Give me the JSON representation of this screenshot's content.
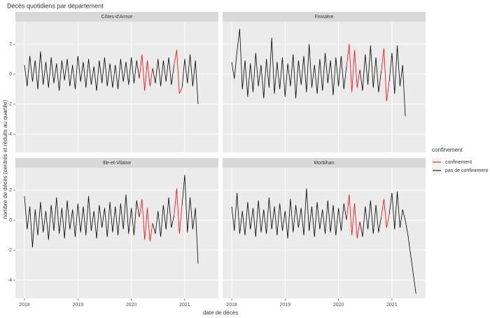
{
  "chart_data": {
    "type": "line",
    "title": "Décès quotidiens par département",
    "x_label": "date de décès",
    "y_label": "nombre de décès (centrés et réduits au quartile)",
    "legend_title": "confinement",
    "xlim": [
      2017.83,
      2021.63
    ],
    "ylim": [
      -5.21,
      3.49
    ],
    "xticks": [
      2018,
      2019,
      2020,
      2021
    ],
    "yticks": [
      -4,
      -2,
      0,
      2
    ],
    "grid": true,
    "x": [
      2018,
      2018.05,
      2018.1,
      2018.15,
      2018.2,
      2018.25,
      2018.3,
      2018.35,
      2018.4,
      2018.45,
      2018.5,
      2018.55,
      2018.6,
      2018.65,
      2018.7,
      2018.75,
      2018.8,
      2018.85,
      2018.9,
      2018.95,
      2019,
      2019.05,
      2019.1,
      2019.15,
      2019.2,
      2019.25,
      2019.3,
      2019.35,
      2019.4,
      2019.45,
      2019.5,
      2019.55,
      2019.6,
      2019.65,
      2019.7,
      2019.75,
      2019.8,
      2019.85,
      2019.9,
      2019.95,
      2020,
      2020.05,
      2020.1,
      2020.15,
      2020.2,
      2020.25,
      2020.3,
      2020.35,
      2020.4,
      2020.45,
      2020.5,
      2020.55,
      2020.6,
      2020.65,
      2020.7,
      2020.75,
      2020.8,
      2020.85,
      2020.9,
      2020.95,
      2021,
      2021.05,
      2021.1,
      2021.15,
      2021.2,
      2021.25,
      2021.3,
      2021.35,
      2021.4,
      2021.45
    ],
    "panels": [
      {
        "title": "Côtes-d'Armor",
        "series": [
          {
            "name": "confinement",
            "color": "#ff0000",
            "values": [
              null,
              null,
              null,
              null,
              null,
              null,
              null,
              null,
              null,
              null,
              null,
              null,
              null,
              null,
              null,
              null,
              null,
              null,
              null,
              null,
              null,
              null,
              null,
              null,
              null,
              null,
              null,
              null,
              null,
              null,
              null,
              null,
              null,
              null,
              null,
              null,
              null,
              null,
              null,
              null,
              null,
              null,
              null,
              -0.3,
              1.3,
              -1.1,
              0.9,
              -0.8,
              0.4,
              null,
              null,
              null,
              null,
              null,
              null,
              null,
              0.6,
              1.6,
              -1.3,
              -0.9,
              null,
              null,
              null,
              null,
              null,
              null,
              null,
              null,
              null,
              null
            ]
          },
          {
            "name": "pas de confinement",
            "color": "#000000",
            "values": [
              0.6,
              -0.8,
              1.2,
              -0.5,
              0.9,
              -1.0,
              1.5,
              -0.7,
              0.8,
              -0.9,
              1.1,
              -0.6,
              0.7,
              -1.1,
              0.9,
              -0.4,
              1.0,
              -0.8,
              0.6,
              -1.0,
              1.2,
              -0.5,
              0.8,
              -0.9,
              1.0,
              -0.7,
              0.5,
              -1.1,
              0.9,
              -0.6,
              1.1,
              -0.8,
              0.7,
              -0.9,
              0.6,
              -1.0,
              1.0,
              -0.5,
              0.8,
              -0.7,
              1.1,
              -0.6,
              0.9,
              -0.3,
              null,
              null,
              null,
              null,
              0.4,
              -0.6,
              1.0,
              -0.8,
              0.9,
              -0.5,
              1.1,
              -0.7,
              0.6,
              null,
              null,
              -0.9,
              1.0,
              -0.6,
              1.3,
              -0.8,
              0.9,
              -2.0,
              null,
              null,
              null,
              null
            ]
          }
        ]
      },
      {
        "title": "Finistère",
        "series": [
          {
            "name": "confinement",
            "color": "#ff0000",
            "values": [
              null,
              null,
              null,
              null,
              null,
              null,
              null,
              null,
              null,
              null,
              null,
              null,
              null,
              null,
              null,
              null,
              null,
              null,
              null,
              null,
              null,
              null,
              null,
              null,
              null,
              null,
              null,
              null,
              null,
              null,
              null,
              null,
              null,
              null,
              null,
              null,
              null,
              null,
              null,
              null,
              null,
              null,
              null,
              0.5,
              2.0,
              -1.2,
              1.6,
              -0.9,
              0.3,
              null,
              null,
              null,
              null,
              null,
              null,
              null,
              0.2,
              1.7,
              -1.8,
              -0.5,
              null,
              null,
              null,
              null,
              null,
              null,
              null,
              null,
              null,
              null
            ]
          },
          {
            "name": "pas de confinement",
            "color": "#000000",
            "values": [
              0.8,
              -0.3,
              1.5,
              3.0,
              -1.0,
              0.9,
              -1.5,
              0.7,
              -1.2,
              1.4,
              -0.8,
              0.6,
              -1.6,
              1.0,
              -0.9,
              2.4,
              -1.3,
              0.8,
              -1.0,
              1.1,
              -1.5,
              0.7,
              -0.8,
              1.3,
              -1.6,
              0.9,
              -0.7,
              1.2,
              -1.2,
              2.0,
              -0.9,
              0.6,
              -1.3,
              1.0,
              -1.1,
              1.4,
              -0.6,
              0.9,
              -1.4,
              1.1,
              -0.8,
              1.2,
              -1.0,
              0.5,
              null,
              null,
              null,
              null,
              0.3,
              -1.1,
              1.3,
              -0.7,
              1.9,
              -0.9,
              1.1,
              -1.2,
              0.2,
              null,
              null,
              -0.5,
              1.4,
              -1.3,
              1.9,
              -0.8,
              0.6,
              -2.8,
              null,
              null,
              null,
              null
            ]
          }
        ]
      },
      {
        "title": "Ille-et-Vilaine",
        "series": [
          {
            "name": "confinement",
            "color": "#ff0000",
            "values": [
              null,
              null,
              null,
              null,
              null,
              null,
              null,
              null,
              null,
              null,
              null,
              null,
              null,
              null,
              null,
              null,
              null,
              null,
              null,
              null,
              null,
              null,
              null,
              null,
              null,
              null,
              null,
              null,
              null,
              null,
              null,
              null,
              null,
              null,
              null,
              null,
              null,
              null,
              null,
              null,
              null,
              null,
              null,
              0.2,
              1.4,
              -1.3,
              0.8,
              -1.4,
              -0.2,
              null,
              null,
              null,
              null,
              null,
              null,
              null,
              0.3,
              2.1,
              -0.9,
              1.0,
              null,
              null,
              null,
              null,
              null,
              null,
              null,
              null,
              null,
              null
            ]
          },
          {
            "name": "pas de confinement",
            "color": "#000000",
            "values": [
              1.6,
              -0.6,
              0.9,
              -1.8,
              0.7,
              -1.0,
              1.2,
              -0.8,
              0.6,
              -1.3,
              1.0,
              -0.7,
              1.5,
              -0.9,
              0.8,
              -1.2,
              1.3,
              -0.6,
              0.7,
              -1.1,
              1.1,
              -0.8,
              0.9,
              -1.0,
              1.6,
              -0.7,
              0.6,
              -1.2,
              1.0,
              -0.5,
              0.8,
              -1.1,
              1.2,
              -0.8,
              0.9,
              -1.0,
              1.1,
              -0.6,
              1.7,
              -0.9,
              0.8,
              -1.0,
              1.3,
              0.2,
              null,
              null,
              null,
              null,
              -0.2,
              -0.9,
              0.6,
              -1.1,
              1.0,
              -0.6,
              1.5,
              -0.5,
              0.3,
              null,
              null,
              1.0,
              3.0,
              -0.8,
              1.5,
              -0.6,
              0.8,
              -2.9,
              null,
              null,
              null,
              null
            ]
          }
        ]
      },
      {
        "title": "Morbihan",
        "series": [
          {
            "name": "confinement",
            "color": "#ff0000",
            "values": [
              null,
              null,
              null,
              null,
              null,
              null,
              null,
              null,
              null,
              null,
              null,
              null,
              null,
              null,
              null,
              null,
              null,
              null,
              null,
              null,
              null,
              null,
              null,
              null,
              null,
              null,
              null,
              null,
              null,
              null,
              null,
              null,
              null,
              null,
              null,
              null,
              null,
              null,
              null,
              null,
              null,
              null,
              null,
              0.0,
              1.7,
              -1.0,
              1.1,
              -1.2,
              -0.1,
              null,
              null,
              null,
              null,
              null,
              null,
              null,
              0.2,
              1.4,
              -0.5,
              0.4,
              null,
              null,
              null,
              null,
              null,
              null,
              null,
              null,
              null,
              null
            ]
          },
          {
            "name": "pas de confinement",
            "color": "#000000",
            "values": [
              0.9,
              -0.7,
              1.8,
              -0.9,
              0.6,
              -1.0,
              1.2,
              -0.6,
              0.8,
              -1.1,
              1.3,
              -0.8,
              0.7,
              -0.9,
              1.5,
              -0.6,
              0.9,
              -1.0,
              1.1,
              -0.7,
              0.6,
              -1.2,
              1.4,
              -0.8,
              1.0,
              -0.5,
              0.8,
              -1.0,
              2.1,
              -0.7,
              0.9,
              -1.1,
              1.2,
              -0.6,
              0.7,
              -0.9,
              1.3,
              -0.8,
              1.0,
              -1.0,
              0.8,
              -0.7,
              1.1,
              0.0,
              null,
              null,
              null,
              null,
              -0.1,
              -1.1,
              0.9,
              -0.6,
              1.3,
              -0.9,
              1.0,
              -0.8,
              0.2,
              null,
              null,
              0.4,
              1.8,
              -0.6,
              1.9,
              -0.5,
              0.7,
              0.0,
              -1.0,
              -2.3,
              -3.6,
              -4.9
            ]
          }
        ]
      }
    ]
  }
}
